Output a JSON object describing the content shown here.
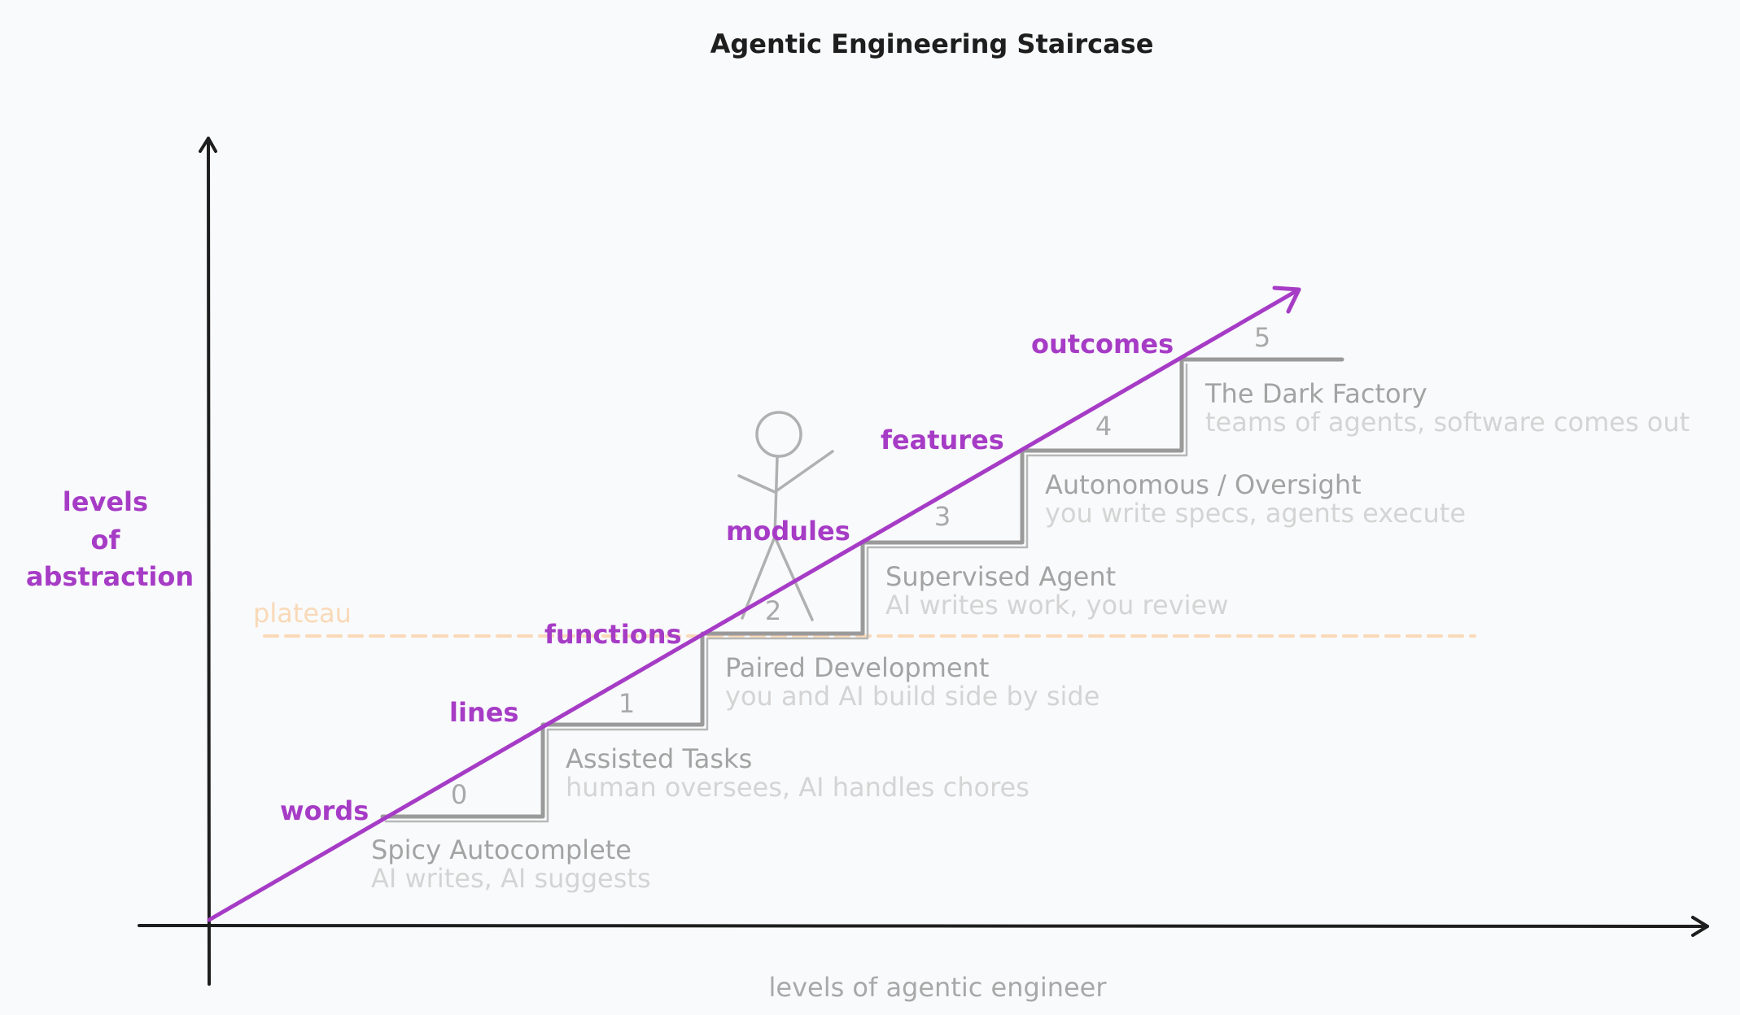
{
  "title": "Agentic Engineering Staircase",
  "y_axis_label": [
    "levels",
    "of",
    "abstraction"
  ],
  "x_axis_label": "levels of agentic engineer",
  "plateau_label": "plateau",
  "colors": {
    "accent": "#a63cc6",
    "stair": "#9a9a9a",
    "plateau": "#f9d9b8",
    "axis": "#1e1e1e",
    "background": "#f9fafb"
  },
  "abstraction_levels": [
    "words",
    "lines",
    "functions",
    "modules",
    "features",
    "outcomes"
  ],
  "steps": [
    {
      "level": "0",
      "title": "Spicy Autocomplete",
      "description": "AI writes, AI suggests"
    },
    {
      "level": "1",
      "title": "Assisted Tasks",
      "description": "human oversees, AI handles chores"
    },
    {
      "level": "2",
      "title": "Paired Development",
      "description": "you and AI build side by side"
    },
    {
      "level": "3",
      "title": "Supervised Agent",
      "description": "AI writes work, you review"
    },
    {
      "level": "4",
      "title": "Autonomous / Oversight",
      "description": "you write specs, agents execute"
    },
    {
      "level": "5",
      "title": "The Dark Factory",
      "description": "teams of agents, software comes out"
    }
  ]
}
